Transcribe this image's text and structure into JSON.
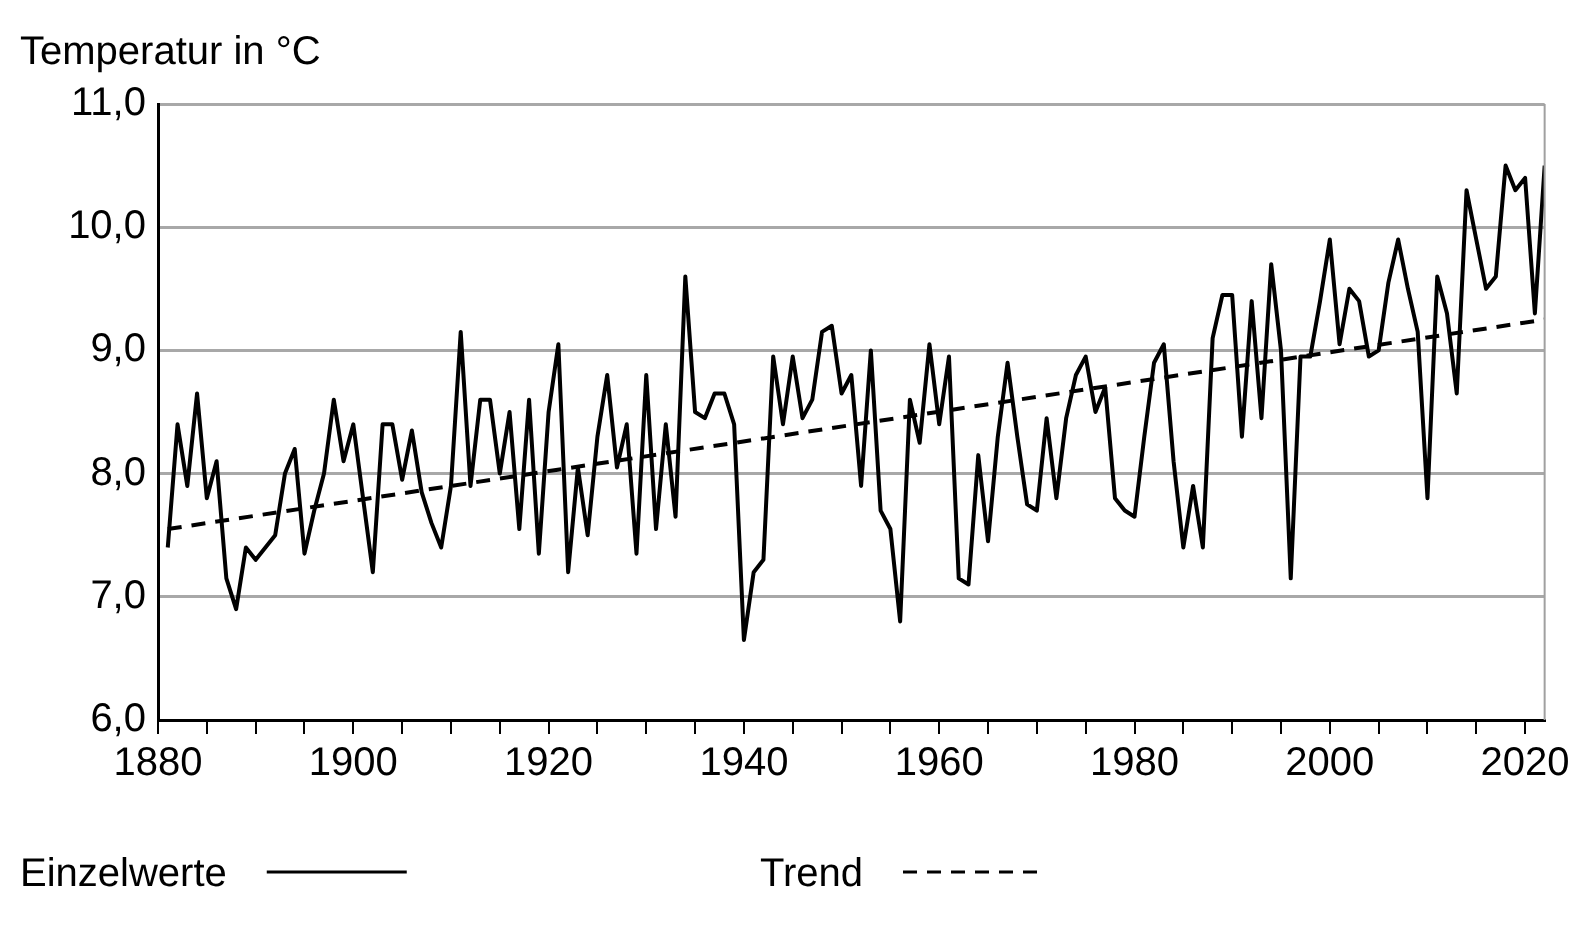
{
  "chart_data": {
    "type": "line",
    "ylabel": "Temperatur in °C",
    "x": [
      1881,
      1882,
      1883,
      1884,
      1885,
      1886,
      1887,
      1888,
      1889,
      1890,
      1891,
      1892,
      1893,
      1894,
      1895,
      1896,
      1897,
      1898,
      1899,
      1900,
      1901,
      1902,
      1903,
      1904,
      1905,
      1906,
      1907,
      1908,
      1909,
      1910,
      1911,
      1912,
      1913,
      1914,
      1915,
      1916,
      1917,
      1918,
      1919,
      1920,
      1921,
      1922,
      1923,
      1924,
      1925,
      1926,
      1927,
      1928,
      1929,
      1930,
      1931,
      1932,
      1933,
      1934,
      1935,
      1936,
      1937,
      1938,
      1939,
      1940,
      1941,
      1942,
      1943,
      1944,
      1945,
      1946,
      1947,
      1948,
      1949,
      1950,
      1951,
      1952,
      1953,
      1954,
      1955,
      1956,
      1957,
      1958,
      1959,
      1960,
      1961,
      1962,
      1963,
      1964,
      1965,
      1966,
      1967,
      1968,
      1969,
      1970,
      1971,
      1972,
      1973,
      1974,
      1975,
      1976,
      1977,
      1978,
      1979,
      1980,
      1981,
      1982,
      1983,
      1984,
      1985,
      1986,
      1987,
      1988,
      1989,
      1990,
      1991,
      1992,
      1993,
      1994,
      1995,
      1996,
      1997,
      1998,
      1999,
      2000,
      2001,
      2002,
      2003,
      2004,
      2005,
      2006,
      2007,
      2008,
      2009,
      2010,
      2011,
      2012,
      2013,
      2014,
      2015,
      2016,
      2017,
      2018,
      2019,
      2020,
      2021,
      2022
    ],
    "series": [
      {
        "name": "Einzelwerte",
        "color": "#000000",
        "line_style": "solid",
        "values": [
          7.4,
          8.4,
          7.9,
          8.65,
          7.8,
          8.1,
          7.15,
          6.9,
          7.4,
          7.3,
          7.4,
          7.5,
          8.0,
          8.2,
          7.35,
          7.7,
          8.0,
          8.6,
          8.1,
          8.4,
          7.8,
          7.2,
          8.4,
          8.4,
          7.95,
          8.35,
          7.85,
          7.6,
          7.4,
          7.9,
          9.15,
          7.9,
          8.6,
          8.6,
          8.0,
          8.5,
          7.55,
          8.6,
          7.35,
          8.5,
          9.05,
          7.2,
          8.05,
          7.5,
          8.3,
          8.8,
          8.05,
          8.4,
          7.35,
          8.8,
          7.55,
          8.4,
          7.65,
          9.6,
          8.5,
          8.45,
          8.65,
          8.65,
          8.4,
          6.65,
          7.2,
          7.3,
          8.95,
          8.4,
          8.95,
          8.45,
          8.6,
          9.15,
          9.2,
          8.65,
          8.8,
          7.9,
          9.0,
          7.7,
          7.55,
          6.8,
          8.6,
          8.25,
          9.05,
          8.4,
          8.95,
          7.15,
          7.1,
          8.15,
          7.45,
          8.3,
          8.9,
          8.3,
          7.75,
          7.7,
          8.45,
          7.8,
          8.45,
          8.8,
          8.95,
          8.5,
          8.7,
          7.8,
          7.7,
          7.65,
          8.3,
          8.9,
          9.05,
          8.1,
          7.4,
          7.9,
          7.4,
          9.1,
          9.45,
          9.45,
          8.3,
          9.4,
          8.45,
          9.7,
          9.0,
          7.15,
          8.95,
          8.95,
          9.4,
          9.9,
          9.05,
          9.5,
          9.4,
          8.95,
          9.0,
          9.55,
          9.9,
          9.5,
          9.15,
          7.8,
          9.6,
          9.3,
          8.65,
          10.3,
          9.9,
          9.5,
          9.6,
          10.5,
          10.3,
          10.4,
          9.3,
          10.5
        ]
      },
      {
        "name": "Trend",
        "color": "#000000",
        "line_style": "dashed",
        "x": [
          1881,
          2022
        ],
        "values": [
          7.55,
          9.25
        ]
      }
    ],
    "xlim": [
      1880,
      2022
    ],
    "xticks": [
      1880,
      {
        "value": 1885,
        "label": null
      },
      {
        "value": 1890,
        "label": null
      },
      {
        "value": 1895,
        "label": null
      },
      1900,
      {
        "value": 1905,
        "label": null
      },
      {
        "value": 1910,
        "label": null
      },
      {
        "value": 1915,
        "label": null
      },
      1920,
      {
        "value": 1925,
        "label": null
      },
      {
        "value": 1930,
        "label": null
      },
      {
        "value": 1935,
        "label": null
      },
      1940,
      {
        "value": 1945,
        "label": null
      },
      {
        "value": 1950,
        "label": null
      },
      {
        "value": 1955,
        "label": null
      },
      1960,
      {
        "value": 1965,
        "label": null
      },
      {
        "value": 1970,
        "label": null
      },
      {
        "value": 1975,
        "label": null
      },
      1980,
      {
        "value": 1985,
        "label": null
      },
      {
        "value": 1990,
        "label": null
      },
      {
        "value": 1995,
        "label": null
      },
      2000,
      {
        "value": 2005,
        "label": null
      },
      {
        "value": 2010,
        "label": null
      },
      {
        "value": 2015,
        "label": null
      },
      2020
    ],
    "ylim": [
      6,
      11
    ],
    "yticks": [
      {
        "value": 6,
        "label": "6,0"
      },
      {
        "value": 7,
        "label": "7,0"
      },
      {
        "value": 8,
        "label": "8,0"
      },
      {
        "value": 9,
        "label": "9,0"
      },
      {
        "value": 10,
        "label": "10,0"
      },
      {
        "value": 11,
        "label": "11,0"
      }
    ],
    "grid": "y",
    "legend": "bottom",
    "marker": "none"
  }
}
